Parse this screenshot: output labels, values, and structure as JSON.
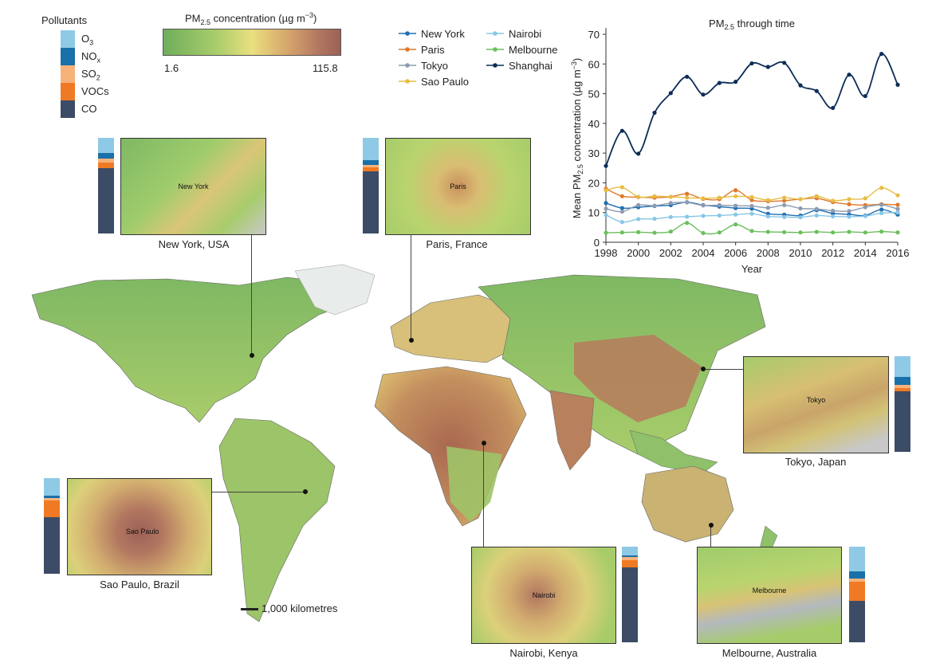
{
  "pollutants": {
    "title": "Pollutants",
    "items": [
      {
        "key": "o3",
        "label": "O3",
        "base": "O",
        "sub": "3",
        "color": "#8ecae6"
      },
      {
        "key": "nox",
        "label": "NOx",
        "base": "NO",
        "sub": "x",
        "color": "#1a70a8"
      },
      {
        "key": "so2",
        "label": "SO2",
        "base": "SO",
        "sub": "2",
        "color": "#f7b27a"
      },
      {
        "key": "vocs",
        "label": "VOCs",
        "base": "VOCs",
        "sub": "",
        "color": "#f07a23"
      },
      {
        "key": "co",
        "label": "CO",
        "base": "CO",
        "sub": "",
        "color": "#3c4c66"
      }
    ]
  },
  "colorbar": {
    "title_pre": "PM",
    "title_sub": "2.5",
    "title_post": " concentration (µg m",
    "title_sup": "−3",
    "title_end": ")",
    "min_label": "1.6",
    "max_label": "115.8",
    "min": 1.6,
    "max": 115.8
  },
  "cities": [
    {
      "key": "newyork",
      "name": "New York",
      "caption": "New York, USA",
      "composition": {
        "o3": 0.16,
        "nox": 0.06,
        "so2": 0.04,
        "vocs": 0.06,
        "co": 0.68
      }
    },
    {
      "key": "paris",
      "name": "Paris",
      "caption": "Paris, France",
      "composition": {
        "o3": 0.23,
        "nox": 0.05,
        "so2": 0.03,
        "vocs": 0.04,
        "co": 0.65
      }
    },
    {
      "key": "tokyo",
      "name": "Tokyo",
      "caption": "Tokyo, Japan",
      "composition": {
        "o3": 0.22,
        "nox": 0.08,
        "so2": 0.03,
        "vocs": 0.04,
        "co": 0.63
      }
    },
    {
      "key": "saopaulo",
      "name": "Sao Paulo",
      "caption": "Sao Paulo, Brazil",
      "composition": {
        "o3": 0.18,
        "nox": 0.03,
        "so2": 0.02,
        "vocs": 0.18,
        "co": 0.59
      }
    },
    {
      "key": "nairobi",
      "name": "Nairobi",
      "caption": "Nairobi, Kenya",
      "composition": {
        "o3": 0.09,
        "nox": 0.02,
        "so2": 0.03,
        "vocs": 0.08,
        "co": 0.78
      }
    },
    {
      "key": "melbourne",
      "name": "Melbourne",
      "caption": "Melbourne, Australia",
      "composition": {
        "o3": 0.26,
        "nox": 0.07,
        "so2": 0.04,
        "vocs": 0.2,
        "co": 0.43
      }
    }
  ],
  "scalebar": {
    "label": "1,000 kilometres"
  },
  "chart_data": {
    "type": "line",
    "title_pre": "PM",
    "title_sub": "2.5",
    "title_post": " through time",
    "ylabel_pre": "Mean PM",
    "ylabel_sub": "2.5",
    "ylabel_post": " concentration (µg m",
    "ylabel_sup": "−3",
    "ylabel_end": ")",
    "xlabel": "Year",
    "x": [
      1998,
      1999,
      2000,
      2001,
      2002,
      2003,
      2004,
      2005,
      2006,
      2007,
      2008,
      2009,
      2010,
      2011,
      2012,
      2013,
      2014,
      2015,
      2016
    ],
    "xticks": [
      1998,
      2000,
      2002,
      2004,
      2006,
      2008,
      2010,
      2012,
      2014,
      2016
    ],
    "yticks": [
      0,
      10,
      20,
      30,
      40,
      50,
      60,
      70
    ],
    "xlim": [
      1998,
      2016
    ],
    "ylim": [
      0,
      70
    ],
    "legend_position": "top-left",
    "series": [
      {
        "name": "New York",
        "color": "#1f6fb2",
        "values": [
          13.2,
          11.5,
          11.8,
          12.2,
          12.5,
          13.5,
          12.5,
          12.0,
          11.5,
          11.3,
          9.6,
          9.3,
          9.0,
          10.8,
          9.7,
          9.4,
          9.0,
          11.0,
          9.3
        ]
      },
      {
        "name": "Paris",
        "color": "#e0782b",
        "values": [
          18.0,
          15.5,
          15.2,
          15.0,
          15.3,
          16.3,
          14.6,
          14.5,
          17.5,
          14.2,
          13.8,
          14.0,
          14.5,
          14.8,
          13.5,
          12.8,
          12.5,
          12.8,
          12.6
        ]
      },
      {
        "name": "Tokyo",
        "color": "#8e9bb0",
        "values": [
          11.3,
          10.3,
          12.5,
          12.3,
          13.2,
          13.4,
          12.4,
          12.5,
          12.3,
          12.2,
          11.6,
          12.5,
          11.4,
          11.2,
          10.6,
          10.5,
          11.8,
          12.6,
          11.2
        ]
      },
      {
        "name": "Sao Paulo",
        "color": "#e6bd44",
        "values": [
          17.5,
          18.5,
          15.3,
          15.5,
          15.3,
          15.0,
          14.8,
          15.0,
          15.5,
          15.2,
          14.2,
          15.0,
          14.5,
          15.5,
          14.0,
          14.5,
          14.8,
          18.3,
          15.8
        ]
      },
      {
        "name": "Nairobi",
        "color": "#88c6e6",
        "values": [
          9.2,
          6.8,
          7.8,
          7.9,
          8.5,
          8.6,
          8.9,
          9.0,
          9.3,
          9.6,
          8.7,
          8.5,
          8.4,
          9.0,
          8.7,
          8.6,
          8.8,
          9.8,
          10.0
        ]
      },
      {
        "name": "Melbourne",
        "color": "#6bbf5c",
        "values": [
          3.2,
          3.3,
          3.4,
          3.2,
          3.6,
          6.5,
          3.1,
          3.3,
          6.0,
          3.8,
          3.5,
          3.4,
          3.3,
          3.5,
          3.3,
          3.5,
          3.3,
          3.6,
          3.3
        ]
      },
      {
        "name": "Shanghai",
        "color": "#0d2d57",
        "values": [
          25.7,
          37.5,
          29.8,
          43.6,
          50.2,
          55.7,
          49.7,
          53.6,
          54.0,
          60.2,
          59.0,
          60.4,
          52.8,
          50.9,
          45.2,
          56.4,
          49.2,
          63.4,
          53.0
        ]
      }
    ]
  }
}
